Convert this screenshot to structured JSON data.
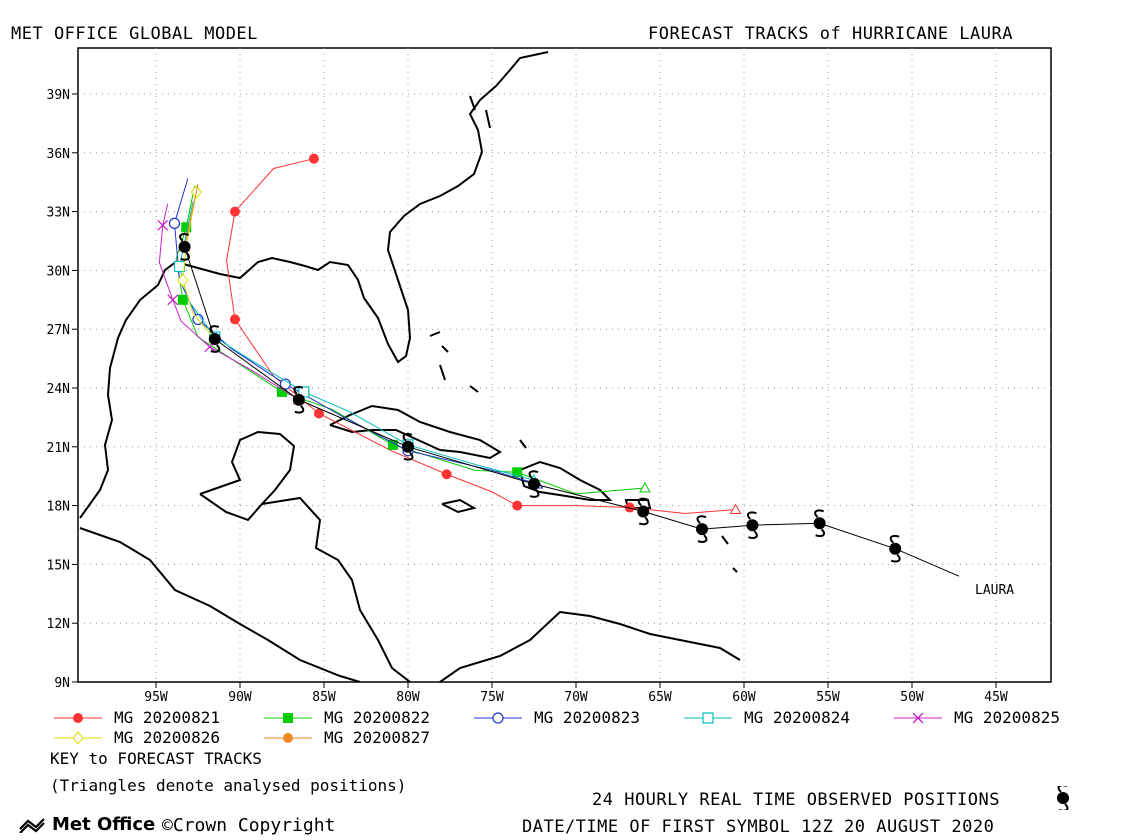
{
  "header": {
    "left_title": "MET OFFICE GLOBAL MODEL",
    "right_title": "FORECAST TRACKS of HURRICANE LAURA"
  },
  "map": {
    "lat_labels": [
      "39N",
      "36N",
      "33N",
      "30N",
      "27N",
      "24N",
      "21N",
      "18N",
      "15N",
      "12N",
      "9N"
    ],
    "lon_labels": [
      "95W",
      "90W",
      "85W",
      "80W",
      "75W",
      "70W",
      "65W",
      "60W",
      "55W",
      "50W",
      "45W"
    ],
    "storm_label": "LAURA"
  },
  "legend": {
    "items": [
      {
        "label": "MG 20200821",
        "color": "#ff3333",
        "marker": "circle-filled"
      },
      {
        "label": "MG 20200822",
        "color": "#00cc00",
        "marker": "square-filled"
      },
      {
        "label": "MG 20200823",
        "color": "#2233cc",
        "marker": "circle-open"
      },
      {
        "label": "MG 20200824",
        "color": "#00bbbb",
        "marker": "square-open"
      },
      {
        "label": "MG 20200825",
        "color": "#cc22cc",
        "marker": "x"
      },
      {
        "label": "MG 20200826",
        "color": "#dddd00",
        "marker": "diamond-open"
      },
      {
        "label": "MG 20200827",
        "color": "#ee8822",
        "marker": "circle-filled"
      }
    ],
    "key_title": "KEY to FORECAST TRACKS",
    "key_note": "(Triangles denote analysed positions)"
  },
  "footer": {
    "logo_text": "Met Office",
    "copyright": "Crown Copyright",
    "observed_note": "24 HOURLY REAL TIME OBSERVED POSITIONS",
    "date_note": "DATE/TIME OF FIRST SYMBOL 12Z 20 AUGUST 2020"
  },
  "tracks": {
    "observed": [
      [
        -47.2,
        14.4
      ],
      [
        -51,
        15.8
      ],
      [
        -55.5,
        17.1
      ],
      [
        -59.5,
        17.0
      ],
      [
        -62.5,
        16.8
      ],
      [
        -66,
        17.7
      ],
      [
        -72.5,
        19.1
      ],
      [
        -80,
        21
      ],
      [
        -86.5,
        23.4
      ],
      [
        -91.5,
        26.5
      ],
      [
        -93.3,
        31.2
      ]
    ],
    "mg20200821": [
      [
        -60.5,
        17.8
      ],
      [
        -63.5,
        17.6
      ],
      [
        -66.8,
        17.9
      ],
      [
        -70,
        18.0
      ],
      [
        -73.5,
        18.0
      ],
      [
        -75,
        18.7
      ],
      [
        -77.7,
        19.6
      ],
      [
        -81,
        20.8
      ],
      [
        -85.3,
        22.7
      ],
      [
        -88,
        24.6
      ],
      [
        -90.3,
        27.5
      ],
      [
        -90.8,
        30.5
      ],
      [
        -90.3,
        33.0
      ],
      [
        -88,
        35.2
      ],
      [
        -85.6,
        35.7
      ]
    ],
    "mg20200822": [
      [
        -65.9,
        18.9
      ],
      [
        -70,
        18.6
      ],
      [
        -73.5,
        19.7
      ],
      [
        -76,
        19.8
      ],
      [
        -80.9,
        21.1
      ],
      [
        -84.5,
        22.9
      ],
      [
        -87.5,
        23.8
      ],
      [
        -92.5,
        26.6
      ],
      [
        -93.4,
        28.5
      ],
      [
        -93.8,
        30.6
      ],
      [
        -93.2,
        32.2
      ],
      [
        -92.7,
        34.3
      ]
    ],
    "mg20200823": [
      [
        -72.3,
        19.1
      ],
      [
        -75,
        19.8
      ],
      [
        -80,
        20.8
      ],
      [
        -84,
        22.6
      ],
      [
        -87.3,
        24.2
      ],
      [
        -90.5,
        26
      ],
      [
        -92.5,
        27.5
      ],
      [
        -93.6,
        29.5
      ],
      [
        -93.9,
        32.4
      ],
      [
        -93.1,
        34.7
      ]
    ],
    "mg20200824": [
      [
        -72.5,
        19.3
      ],
      [
        -76,
        20.1
      ],
      [
        -80,
        21.1
      ],
      [
        -83.5,
        22.8
      ],
      [
        -86.2,
        23.8
      ],
      [
        -89.5,
        25.5
      ],
      [
        -91.5,
        26.6
      ],
      [
        -93.1,
        28.5
      ],
      [
        -93.6,
        30.2
      ],
      [
        -92.8,
        33.5
      ]
    ],
    "mg20200825": [
      [
        -86.5,
        23.4
      ],
      [
        -89.5,
        25
      ],
      [
        -91.8,
        26.1
      ],
      [
        -93.5,
        27.4
      ],
      [
        -94,
        28.5
      ],
      [
        -94.8,
        30.4
      ],
      [
        -94.6,
        32.3
      ],
      [
        -94.3,
        33.4
      ]
    ],
    "mg20200826": [
      [
        -91.5,
        26.5
      ],
      [
        -92.8,
        27.8
      ],
      [
        -93.4,
        29.5
      ],
      [
        -93.2,
        31.2
      ],
      [
        -92.6,
        34.0
      ]
    ],
    "mg20200827": [
      [
        -93.3,
        31.2
      ],
      [
        -92.5,
        34.4
      ]
    ]
  }
}
